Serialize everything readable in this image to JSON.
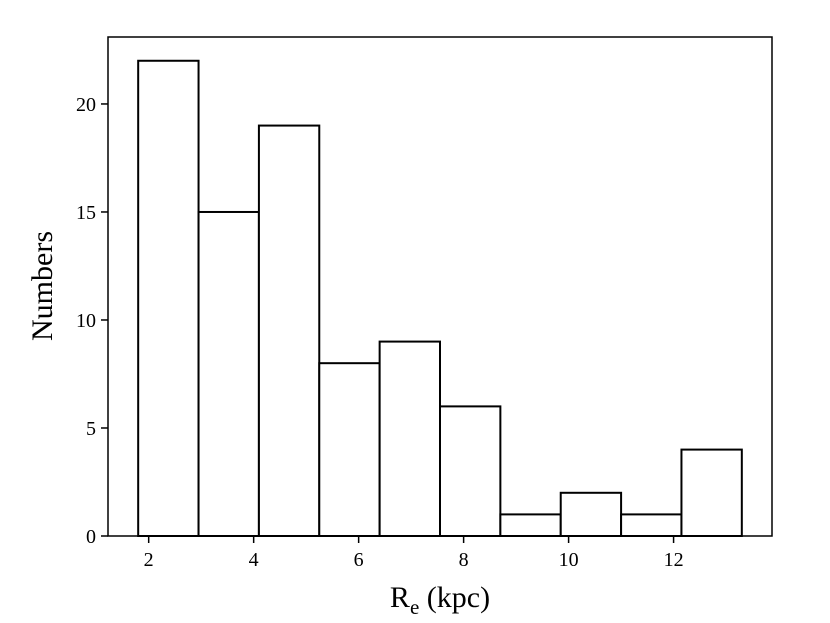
{
  "chart_data": {
    "type": "bar",
    "subtype": "histogram",
    "bin_edges": [
      1.8,
      2.95,
      4.1,
      5.25,
      6.4,
      7.55,
      8.7,
      9.85,
      11.0,
      12.15,
      13.3
    ],
    "values": [
      22,
      15,
      19,
      8,
      9,
      6,
      1,
      2,
      1,
      4
    ],
    "xlabel_main": "R",
    "xlabel_sub": "e",
    "xlabel_rest": " (kpc)",
    "ylabel": "Numbers",
    "xlim": [
      1.225,
      13.875
    ],
    "ylim": [
      0,
      23.1
    ],
    "xticks": [
      2,
      4,
      6,
      8,
      10,
      12
    ],
    "yticks": [
      0,
      5,
      10,
      15,
      20
    ],
    "grid": false,
    "legend": "none",
    "bar_fill": "#ffffff",
    "bar_edge": "#000000"
  }
}
